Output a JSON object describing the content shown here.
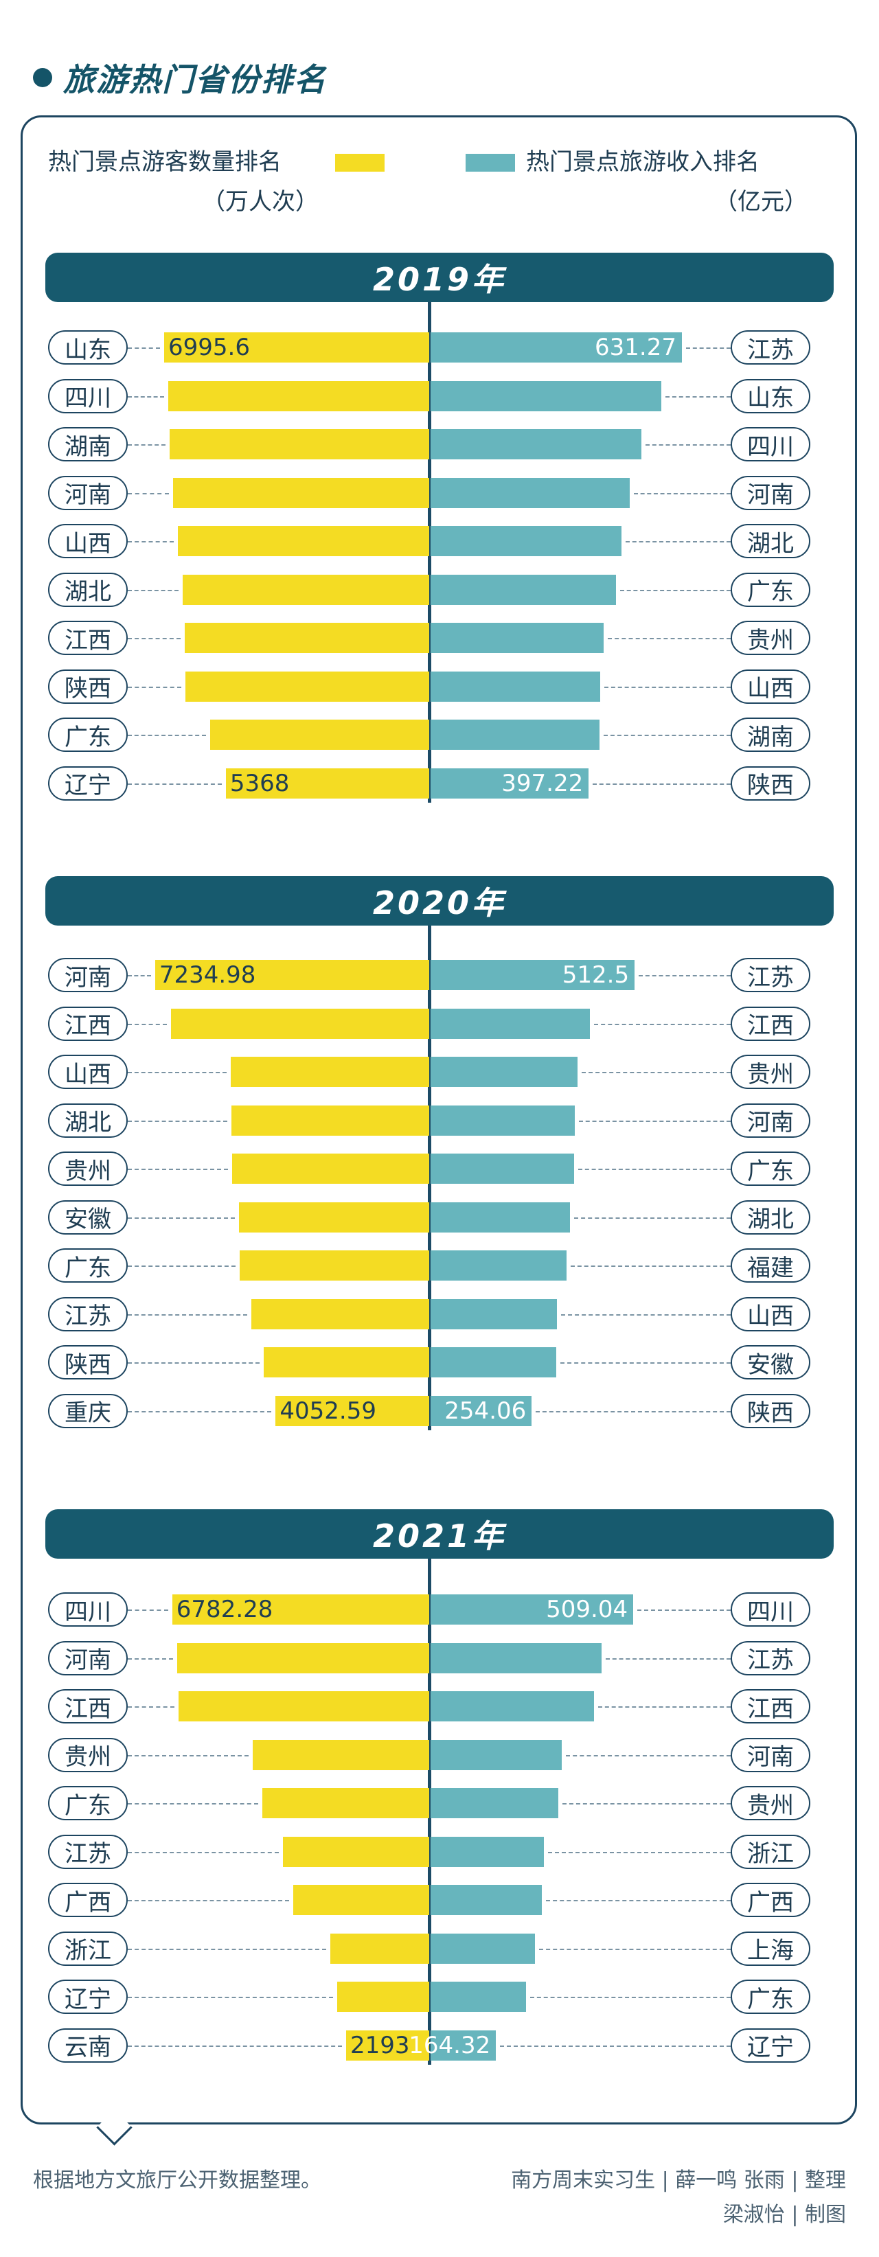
{
  "title": "旅游热门省份排名",
  "legend": {
    "left_label": "热门景点游客数量排名",
    "left_unit": "（万人次）",
    "right_label": "热门景点旅游收入排名",
    "right_unit": "（亿元）",
    "left_color": "#f4dc23",
    "right_color": "#67b5bd"
  },
  "chart_data": [
    {
      "type": "bar",
      "title": "2019年",
      "left_series": {
        "name": "热门景点游客数量排名",
        "unit": "万人次",
        "categories": [
          "山东",
          "四川",
          "湖南",
          "河南",
          "山西",
          "湖北",
          "江西",
          "陕西",
          "广东",
          "辽宁"
        ],
        "values": [
          6995.6,
          6880,
          6860,
          6760,
          6640,
          6500,
          6460,
          6430,
          5780,
          5368
        ],
        "value_labels": [
          "6995.6",
          "",
          "",
          "",
          "",
          "",
          "",
          "",
          "",
          "5368"
        ]
      },
      "right_series": {
        "name": "热门景点旅游收入排名",
        "unit": "亿元",
        "categories": [
          "江苏",
          "山东",
          "四川",
          "河南",
          "湖北",
          "广东",
          "贵州",
          "山西",
          "湖南",
          "陕西"
        ],
        "values": [
          631.27,
          580,
          530,
          500,
          480,
          465,
          435,
          426,
          425,
          397.22
        ],
        "value_labels": [
          "631.27",
          "",
          "",
          "",
          "",
          "",
          "",
          "",
          "",
          "397.22"
        ]
      }
    },
    {
      "type": "bar",
      "title": "2020年",
      "left_series": {
        "name": "热门景点游客数量排名",
        "unit": "万人次",
        "categories": [
          "河南",
          "江西",
          "山西",
          "湖北",
          "贵州",
          "安徽",
          "广东",
          "江苏",
          "陕西",
          "重庆"
        ],
        "values": [
          7234.98,
          6820,
          5230,
          5220,
          5200,
          5020,
          5000,
          4700,
          4370,
          4052.59
        ],
        "value_labels": [
          "7234.98",
          "",
          "",
          "",
          "",
          "",
          "",
          "",
          "",
          "4052.59"
        ]
      },
      "right_series": {
        "name": "热门景点旅游收入排名",
        "unit": "亿元",
        "categories": [
          "江苏",
          "江西",
          "贵州",
          "河南",
          "广东",
          "湖北",
          "福建",
          "山西",
          "安徽",
          "陕西"
        ],
        "values": [
          512.5,
          400,
          370,
          362,
          360,
          350,
          342,
          318,
          316,
          254.06
        ],
        "value_labels": [
          "512.5",
          "",
          "",
          "",
          "",
          "",
          "",
          "",
          "",
          "254.06"
        ]
      }
    },
    {
      "type": "bar",
      "title": "2021年",
      "left_series": {
        "name": "热门景点游客数量排名",
        "unit": "万人次",
        "categories": [
          "四川",
          "河南",
          "江西",
          "贵州",
          "广东",
          "江苏",
          "广西",
          "浙江",
          "辽宁",
          "云南"
        ],
        "values": [
          6782.28,
          6660,
          6610,
          4660,
          4400,
          3860,
          3580,
          2610,
          2420,
          2193
        ],
        "value_labels": [
          "6782.28",
          "",
          "",
          "",
          "",
          "",
          "",
          "",
          "",
          "2193"
        ]
      },
      "right_series": {
        "name": "热门景点旅游收入排名",
        "unit": "亿元",
        "categories": [
          "四川",
          "江苏",
          "江西",
          "河南",
          "贵州",
          "浙江",
          "广西",
          "上海",
          "广东",
          "辽宁"
        ],
        "values": [
          509.04,
          430,
          410,
          330,
          320,
          285,
          280,
          262,
          240,
          164.32
        ],
        "value_labels": [
          "509.04",
          "",
          "",
          "",
          "",
          "",
          "",
          "",
          "",
          "164.32"
        ]
      }
    }
  ],
  "footer": {
    "source": "根据地方文旅厅公开数据整理。",
    "credit_line1": "南方周末实习生 | 薛一鸣  张雨 | 整理",
    "credit_line2": "梁淑怡 | 制图"
  }
}
